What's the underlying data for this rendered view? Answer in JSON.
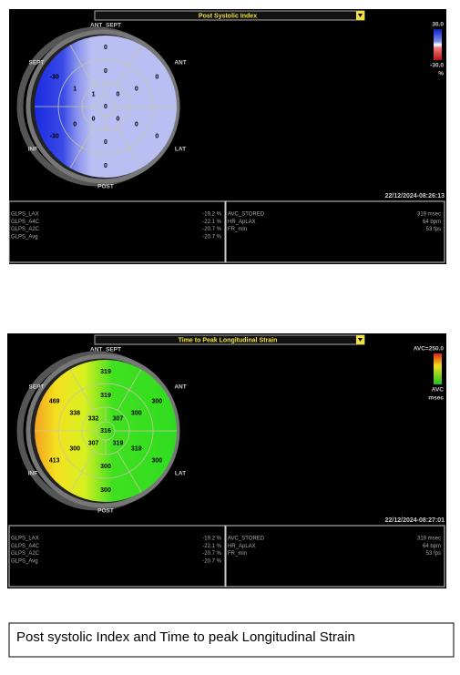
{
  "panels": [
    {
      "title": "Post Systolic Index",
      "orientation": {
        "ant_sept": "ANT_SEPT",
        "sept": "SEPT",
        "ant": "ANT",
        "inf": "INF",
        "lat": "LAT",
        "post": "POST"
      },
      "scale": [
        "30.0",
        "-30.0",
        "%"
      ],
      "timestamp": "22/12/2024-08:26:13",
      "segments": {
        "basal": [
          0,
          0,
          0,
          0,
          -30,
          -30
        ],
        "mid": [
          0,
          0,
          0,
          0,
          0,
          1
        ],
        "apical": [
          0,
          0,
          0,
          1
        ],
        "apex": 0
      },
      "left_table": [
        [
          "GLPS_LAX",
          "-19.2 %"
        ],
        [
          "GLPS_A4C",
          "-22.1 %"
        ],
        [
          "GLPS_A2C",
          "-20.7 %"
        ],
        [
          "GLPS_Avg",
          "-20.7 %"
        ]
      ],
      "right_table": [
        [
          "AVC_STORED",
          "319 msec"
        ],
        [
          "HR_ApLAX",
          "64 bpm"
        ],
        [
          "FR_min",
          "53 fps"
        ]
      ]
    },
    {
      "title": "Time to Peak Longitudinal Strain",
      "orientation": {
        "ant_sept": "ANT_SEPT",
        "sept": "SEPT",
        "ant": "ANT",
        "inf": "INF",
        "lat": "LAT",
        "post": "POST"
      },
      "scale": [
        "AVC=250.0",
        "AVC",
        "msec"
      ],
      "timestamp": "22/12/2024-08:27:01",
      "segments": {
        "basal": [
          319,
          300,
          300,
          300,
          413,
          469
        ],
        "mid": [
          319,
          300,
          319,
          300,
          300,
          338
        ],
        "apical": [
          307,
          319,
          307,
          332
        ],
        "apex": 316
      },
      "left_table": [
        [
          "GLPS_LAX",
          "-19.2 %"
        ],
        [
          "GLPS_A4C",
          "-22.1 %"
        ],
        [
          "GLPS_A2C",
          "-20.7 %"
        ],
        [
          "GLPS_Avg",
          "-20.7 %"
        ]
      ],
      "right_table": [
        [
          "AVC_STORED",
          "319 msec"
        ],
        [
          "HR_ApLAX",
          "64 bpm"
        ],
        [
          "FR_min",
          "53 fps"
        ]
      ]
    }
  ],
  "caption": "Post systolic Index and Time to peak Longitudinal Strain"
}
